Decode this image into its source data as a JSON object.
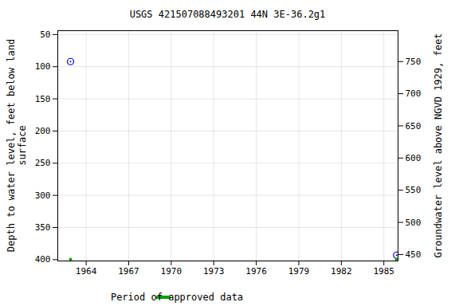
{
  "chart_data": {
    "type": "scatter",
    "title": "USGS 421507088493201 44N 3E-36.2g1",
    "ylabel": [
      "Depth to water level, feet below land",
      "surface"
    ],
    "y2label": "Groundwater level above NGVD 1929, feet",
    "x": [
      1962.9,
      1985.9
    ],
    "series": [
      {
        "values": [
          92,
          393
        ],
        "color": "#0000cc",
        "marker": "circle"
      },
      {
        "name": "Period of approved data",
        "type": "period",
        "color": "#00a000",
        "x": [
          1962.9,
          1985.9
        ]
      }
    ],
    "xlim": [
      1962,
      1986
    ],
    "xticks": [
      1964,
      1967,
      1970,
      1973,
      1976,
      1979,
      1982,
      1985
    ],
    "ylim": [
      44,
      402
    ],
    "yticks": [
      50,
      100,
      150,
      200,
      250,
      300,
      350,
      400
    ],
    "y2lim": [
      798,
      440
    ],
    "y2ticks": [
      450,
      500,
      550,
      600,
      650,
      700,
      750
    ],
    "grid": true,
    "legend": "bottom"
  }
}
